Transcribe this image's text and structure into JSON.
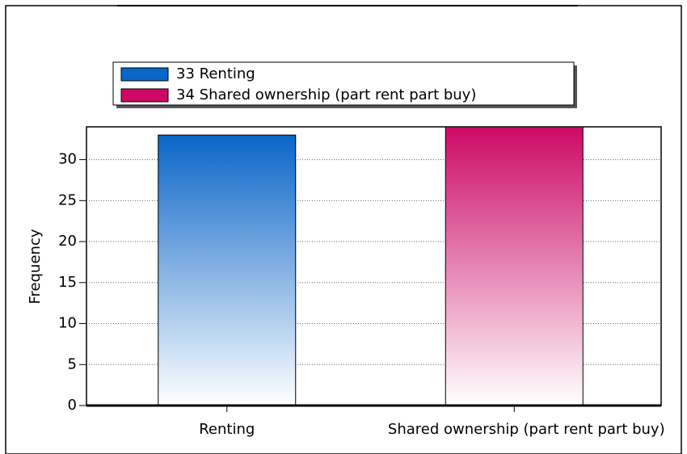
{
  "chart_data": {
    "type": "bar",
    "categories": [
      "Renting",
      "Shared ownership (part rent part buy)"
    ],
    "values": [
      33,
      34
    ],
    "colors": [
      "#0a66c8",
      "#cc0a66"
    ],
    "y_label": "Frequency",
    "ylim": [
      0,
      34
    ],
    "yticks": [
      0,
      5,
      10,
      15,
      20,
      25,
      30
    ],
    "grid": true
  }
}
